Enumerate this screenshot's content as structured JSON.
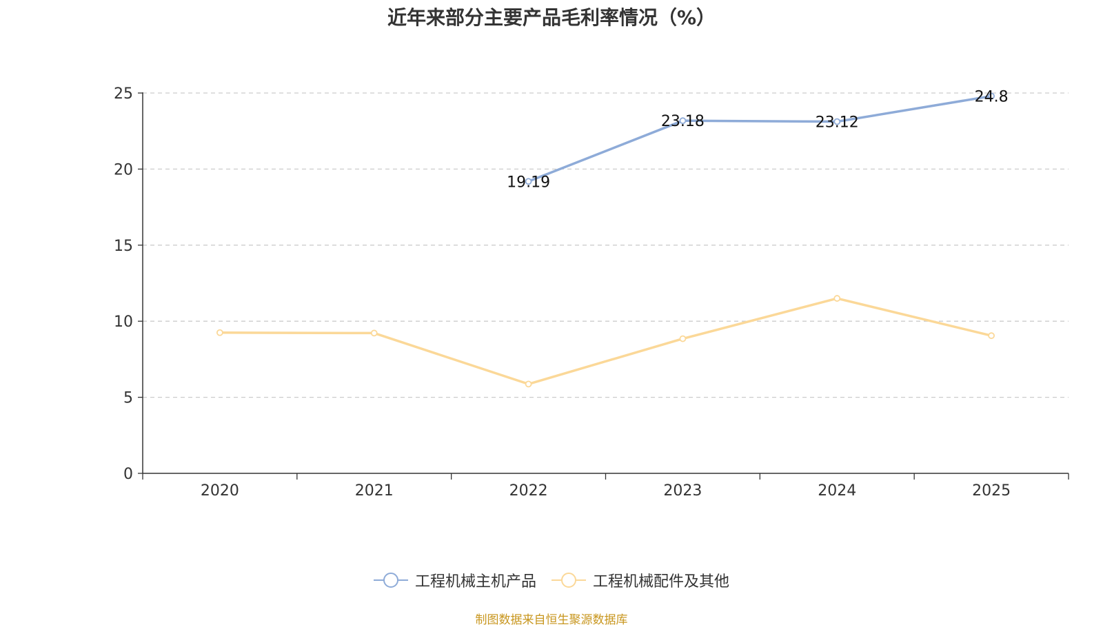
{
  "chart_data": {
    "type": "line",
    "title": "近年来部分主要产品毛利率情况（%）",
    "categories": [
      "2020",
      "2021",
      "2022",
      "2023",
      "2024",
      "2025"
    ],
    "ylim": [
      0,
      25
    ],
    "yticks": [
      0,
      5,
      10,
      15,
      20,
      25
    ],
    "grid": true,
    "legend_position": "bottom",
    "series": [
      {
        "name": "工程机械主机产品",
        "color": "#8eabd8",
        "values": [
          null,
          null,
          19.19,
          23.18,
          23.12,
          24.8
        ],
        "labels": [
          "",
          "",
          "19.19",
          "23.18",
          "23.12",
          "24.8"
        ],
        "show_labels": true
      },
      {
        "name": "工程机械配件及其他",
        "color": "#fbd898",
        "values": [
          9.25,
          9.22,
          5.87,
          8.85,
          11.5,
          9.05
        ],
        "show_labels": false
      }
    ]
  },
  "source_note": "制图数据来自恒生聚源数据库"
}
